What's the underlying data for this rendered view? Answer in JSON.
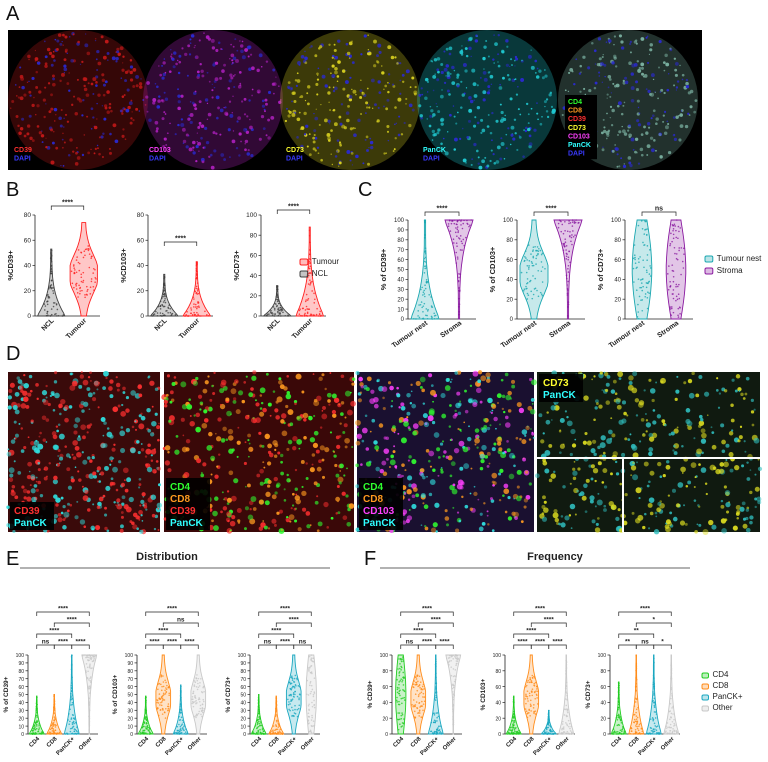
{
  "figure": {
    "panel_letters": [
      "A",
      "B",
      "C",
      "D",
      "E",
      "F"
    ],
    "panel_a": {
      "cores": [
        {
          "markers": [
            {
              "text": "CD39",
              "color": "#ff3030"
            },
            {
              "text": "DAPI",
              "color": "#3a3aff"
            }
          ],
          "tint": "#c01818"
        },
        {
          "markers": [
            {
              "text": "CD103",
              "color": "#ff40ff"
            },
            {
              "text": "DAPI",
              "color": "#3a3aff"
            }
          ],
          "tint": "#b020c0"
        },
        {
          "markers": [
            {
              "text": "CD73",
              "color": "#ffff30"
            },
            {
              "text": "DAPI",
              "color": "#3a3aff"
            }
          ],
          "tint": "#d8d020"
        },
        {
          "markers": [
            {
              "text": "PanCK",
              "color": "#30ffff"
            },
            {
              "text": "DAPI",
              "color": "#3a3aff"
            }
          ],
          "tint": "#20c8d0"
        },
        {
          "markers": [
            {
              "text": "CD4",
              "color": "#30ff30"
            },
            {
              "text": "CD8",
              "color": "#ff9a20"
            },
            {
              "text": "CD39",
              "color": "#ff3030"
            },
            {
              "text": "CD73",
              "color": "#ffff30"
            },
            {
              "text": "CD103",
              "color": "#ff40ff"
            },
            {
              "text": "PanCK",
              "color": "#30ffff"
            },
            {
              "text": "DAPI",
              "color": "#3a3aff"
            }
          ],
          "tint": "#7ab0a0"
        }
      ]
    },
    "panel_d": {
      "images": [
        {
          "markers": [
            {
              "text": "CD39",
              "color": "#ff3030"
            },
            {
              "text": "PanCK",
              "color": "#30ffff"
            }
          ]
        },
        {
          "markers": [
            {
              "text": "CD4",
              "color": "#30ff30"
            },
            {
              "text": "CD8",
              "color": "#ff9a20"
            },
            {
              "text": "CD39",
              "color": "#ff3030"
            },
            {
              "text": "PanCK",
              "color": "#30ffff"
            }
          ]
        },
        {
          "markers": [
            {
              "text": "CD4",
              "color": "#30ff30"
            },
            {
              "text": "CD8",
              "color": "#ff9a20"
            },
            {
              "text": "CD103",
              "color": "#ff40ff"
            },
            {
              "text": "PanCK",
              "color": "#30ffff"
            }
          ]
        },
        {
          "markers": [
            {
              "text": "CD73",
              "color": "#ffff30"
            },
            {
              "text": "PanCK",
              "color": "#30ffff"
            }
          ]
        }
      ]
    },
    "section_titles": {
      "e": "Distribution",
      "f": "Frequency"
    }
  },
  "chart_data": [
    {
      "panel": "B",
      "type": "violin",
      "ylabel": "%CD39+",
      "ylim": [
        0,
        80
      ],
      "yticks": [
        0,
        20,
        40,
        60,
        80
      ],
      "categories": [
        "NCL",
        "Tumour"
      ],
      "colors": [
        "#404040",
        "#ff2020"
      ],
      "max": [
        53,
        74
      ],
      "comparisons": [
        {
          "pair": [
            "NCL",
            "Tumour"
          ],
          "label": "****"
        }
      ]
    },
    {
      "panel": "B",
      "type": "violin",
      "ylabel": "%CD103+",
      "ylim": [
        0,
        80
      ],
      "yticks": [
        0,
        20,
        40,
        60,
        80
      ],
      "categories": [
        "NCL",
        "Tumour"
      ],
      "colors": [
        "#404040",
        "#ff2020"
      ],
      "max": [
        33,
        43
      ],
      "comparisons": [
        {
          "pair": [
            "NCL",
            "Tumour"
          ],
          "label": "****"
        }
      ]
    },
    {
      "panel": "B",
      "type": "violin",
      "ylabel": "%CD73+",
      "ylim": [
        0,
        100
      ],
      "yticks": [
        0,
        20,
        40,
        60,
        80,
        100
      ],
      "categories": [
        "NCL",
        "Tumour"
      ],
      "colors": [
        "#404040",
        "#ff2020"
      ],
      "max": [
        30,
        88
      ],
      "comparisons": [
        {
          "pair": [
            "NCL",
            "Tumour"
          ],
          "label": "****"
        }
      ]
    },
    {
      "panel": "B-legend",
      "type": "legend",
      "entries": [
        {
          "name": "Tumour",
          "color": "#ff2020"
        },
        {
          "name": "NCL",
          "color": "#404040"
        }
      ]
    },
    {
      "panel": "C",
      "type": "violin",
      "ylabel": "% of CD39+",
      "ylim": [
        0,
        100
      ],
      "yticks": [
        0,
        10,
        20,
        30,
        40,
        50,
        60,
        70,
        80,
        90,
        100
      ],
      "categories": [
        "Tumour nest",
        "Stroma"
      ],
      "colors": [
        "#1aa7b0",
        "#8a1aa0"
      ],
      "max": [
        100,
        100
      ],
      "comparisons": [
        {
          "pair": [
            "Tumour nest",
            "Stroma"
          ],
          "label": "****"
        }
      ]
    },
    {
      "panel": "C",
      "type": "violin",
      "ylabel": "% of CD103+",
      "ylim": [
        0,
        100
      ],
      "yticks": [
        0,
        20,
        40,
        60,
        80,
        100
      ],
      "categories": [
        "Tumour nest",
        "Stroma"
      ],
      "colors": [
        "#1aa7b0",
        "#8a1aa0"
      ],
      "max": [
        100,
        100
      ],
      "comparisons": [
        {
          "pair": [
            "Tumour nest",
            "Stroma"
          ],
          "label": "****"
        }
      ]
    },
    {
      "panel": "C",
      "type": "violin",
      "ylabel": "% of CD73+",
      "ylim": [
        0,
        100
      ],
      "yticks": [
        0,
        20,
        40,
        60,
        80,
        100
      ],
      "categories": [
        "Tumour nest",
        "Stroma"
      ],
      "colors": [
        "#1aa7b0",
        "#8a1aa0"
      ],
      "max": [
        100,
        100
      ],
      "comparisons": [
        {
          "pair": [
            "Tumour nest",
            "Stroma"
          ],
          "label": "ns"
        }
      ]
    },
    {
      "panel": "C-legend",
      "type": "legend",
      "entries": [
        {
          "name": "Tumour nest",
          "color": "#1aa7b0"
        },
        {
          "name": "Stroma",
          "color": "#8a1aa0"
        }
      ]
    },
    {
      "panel": "E",
      "type": "violin",
      "ylabel": "% of CD39+",
      "ylim": [
        0,
        100
      ],
      "yticks": [
        0,
        10,
        20,
        30,
        40,
        50,
        60,
        70,
        80,
        90,
        100
      ],
      "categories": [
        "CD4",
        "CD8",
        "PanCK+",
        "Other"
      ],
      "colors": [
        "#22cc22",
        "#ff8c1a",
        "#1aa7c0",
        "#c8c8c8"
      ],
      "max": [
        48,
        50,
        100,
        100
      ],
      "comparisons": [
        {
          "pair": [
            "CD4",
            "CD8"
          ],
          "label": "ns"
        },
        {
          "pair": [
            "CD8",
            "PanCK+"
          ],
          "label": "****"
        },
        {
          "pair": [
            "PanCK+",
            "Other"
          ],
          "label": "****"
        },
        {
          "pair": [
            "CD4",
            "PanCK+"
          ],
          "label": "****"
        },
        {
          "pair": [
            "CD8",
            "Other"
          ],
          "label": "****"
        },
        {
          "pair": [
            "CD4",
            "Other"
          ],
          "label": "****"
        }
      ]
    },
    {
      "panel": "E",
      "type": "violin",
      "ylabel": "% of CD103+",
      "ylim": [
        0,
        100
      ],
      "yticks": [
        0,
        10,
        20,
        30,
        40,
        50,
        60,
        70,
        80,
        90,
        100
      ],
      "categories": [
        "CD4",
        "CD8",
        "PanCK+",
        "Other"
      ],
      "colors": [
        "#22cc22",
        "#ff8c1a",
        "#1aa7c0",
        "#c8c8c8"
      ],
      "max": [
        48,
        100,
        62,
        100
      ],
      "comparisons": [
        {
          "pair": [
            "CD4",
            "CD8"
          ],
          "label": "****"
        },
        {
          "pair": [
            "CD8",
            "PanCK+"
          ],
          "label": "****"
        },
        {
          "pair": [
            "PanCK+",
            "Other"
          ],
          "label": "****"
        },
        {
          "pair": [
            "CD4",
            "PanCK+"
          ],
          "label": "****"
        },
        {
          "pair": [
            "CD8",
            "Other"
          ],
          "label": "ns"
        },
        {
          "pair": [
            "CD4",
            "Other"
          ],
          "label": "****"
        }
      ]
    },
    {
      "panel": "E",
      "type": "violin",
      "ylabel": "% of CD73+",
      "ylim": [
        0,
        100
      ],
      "yticks": [
        0,
        10,
        20,
        30,
        40,
        50,
        60,
        70,
        80,
        90,
        100
      ],
      "categories": [
        "CD4",
        "CD8",
        "PanCK+",
        "Other"
      ],
      "colors": [
        "#22cc22",
        "#ff8c1a",
        "#1aa7c0",
        "#c8c8c8"
      ],
      "max": [
        50,
        48,
        100,
        100
      ],
      "comparisons": [
        {
          "pair": [
            "CD4",
            "CD8"
          ],
          "label": "ns"
        },
        {
          "pair": [
            "CD8",
            "PanCK+"
          ],
          "label": "****"
        },
        {
          "pair": [
            "PanCK+",
            "Other"
          ],
          "label": "ns"
        },
        {
          "pair": [
            "CD4",
            "PanCK+"
          ],
          "label": "****"
        },
        {
          "pair": [
            "CD8",
            "Other"
          ],
          "label": "****"
        },
        {
          "pair": [
            "CD4",
            "Other"
          ],
          "label": "****"
        }
      ]
    },
    {
      "panel": "F",
      "type": "violin",
      "ylabel": "% CD39+",
      "ylim": [
        0,
        100
      ],
      "yticks": [
        0,
        20,
        40,
        60,
        80,
        100
      ],
      "categories": [
        "CD4",
        "CD8",
        "PanCK+",
        "Other"
      ],
      "colors": [
        "#22cc22",
        "#ff8c1a",
        "#1aa7c0",
        "#c8c8c8"
      ],
      "max": [
        100,
        100,
        100,
        100
      ],
      "comparisons": [
        {
          "pair": [
            "CD4",
            "CD8"
          ],
          "label": "ns"
        },
        {
          "pair": [
            "CD8",
            "PanCK+"
          ],
          "label": "****"
        },
        {
          "pair": [
            "PanCK+",
            "Other"
          ],
          "label": "****"
        },
        {
          "pair": [
            "CD4",
            "PanCK+"
          ],
          "label": "****"
        },
        {
          "pair": [
            "CD8",
            "Other"
          ],
          "label": "****"
        },
        {
          "pair": [
            "CD4",
            "Other"
          ],
          "label": "****"
        }
      ]
    },
    {
      "panel": "F",
      "type": "violin",
      "ylabel": "% CD103+",
      "ylim": [
        0,
        100
      ],
      "yticks": [
        0,
        20,
        40,
        60,
        80,
        100
      ],
      "categories": [
        "CD4",
        "CD8",
        "PanCK+",
        "Other"
      ],
      "colors": [
        "#22cc22",
        "#ff8c1a",
        "#1aa7c0",
        "#c8c8c8"
      ],
      "max": [
        48,
        100,
        30,
        100
      ],
      "comparisons": [
        {
          "pair": [
            "CD4",
            "CD8"
          ],
          "label": "****"
        },
        {
          "pair": [
            "CD8",
            "PanCK+"
          ],
          "label": "****"
        },
        {
          "pair": [
            "PanCK+",
            "Other"
          ],
          "label": "****"
        },
        {
          "pair": [
            "CD4",
            "PanCK+"
          ],
          "label": "****"
        },
        {
          "pair": [
            "CD8",
            "Other"
          ],
          "label": "****"
        },
        {
          "pair": [
            "CD4",
            "Other"
          ],
          "label": "****"
        }
      ]
    },
    {
      "panel": "F",
      "type": "violin",
      "ylabel": "% CD73+",
      "ylim": [
        0,
        100
      ],
      "yticks": [
        0,
        20,
        40,
        60,
        80,
        100
      ],
      "categories": [
        "CD4",
        "CD8",
        "PanCK+",
        "Other"
      ],
      "colors": [
        "#22cc22",
        "#ff8c1a",
        "#1aa7c0",
        "#c8c8c8"
      ],
      "max": [
        66,
        100,
        100,
        100
      ],
      "comparisons": [
        {
          "pair": [
            "CD4",
            "CD8"
          ],
          "label": "**"
        },
        {
          "pair": [
            "CD8",
            "PanCK+"
          ],
          "label": "ns"
        },
        {
          "pair": [
            "PanCK+",
            "Other"
          ],
          "label": "*"
        },
        {
          "pair": [
            "CD4",
            "PanCK+"
          ],
          "label": "**"
        },
        {
          "pair": [
            "CD8",
            "Other"
          ],
          "label": "*"
        },
        {
          "pair": [
            "CD4",
            "Other"
          ],
          "label": "****"
        }
      ]
    },
    {
      "panel": "EF-legend",
      "type": "legend",
      "entries": [
        {
          "name": "CD4",
          "color": "#22cc22"
        },
        {
          "name": "CD8",
          "color": "#ff8c1a"
        },
        {
          "name": "PanCK+",
          "color": "#1aa7c0"
        },
        {
          "name": "Other",
          "color": "#c8c8c8"
        }
      ]
    }
  ]
}
